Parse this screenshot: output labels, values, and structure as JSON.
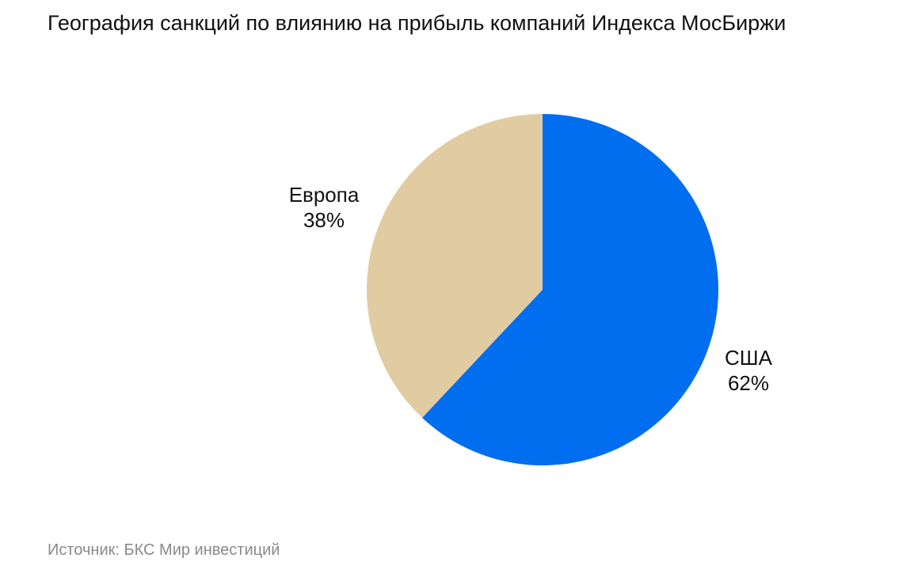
{
  "chart_data": {
    "type": "pie",
    "title": "География санкций по влиянию на прибыль компаний Индекса МосБиржи",
    "slices": [
      {
        "name": "США",
        "value": 62,
        "label": "62%",
        "color": "#006EEE"
      },
      {
        "name": "Европа",
        "value": 38,
        "label": "38%",
        "color": "#E1CCA2"
      }
    ],
    "start_angle_deg": 0,
    "direction": "clockwise"
  },
  "source": "Источник: БКС Мир инвестиций"
}
